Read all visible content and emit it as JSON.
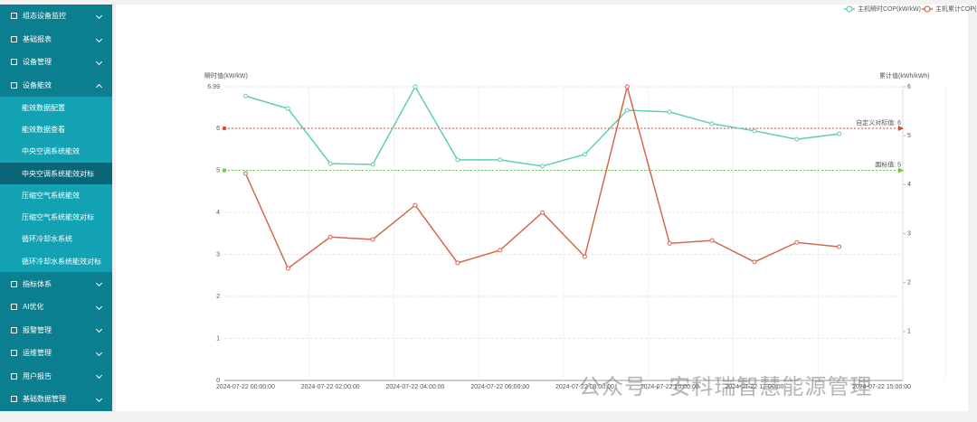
{
  "sidebar": {
    "menu": [
      {
        "label": "组态设备监控"
      },
      {
        "label": "基础报表"
      },
      {
        "label": "设备管理"
      },
      {
        "label": "设备能效",
        "expanded": true,
        "children": [
          {
            "label": "能效数据配置"
          },
          {
            "label": "能效数据查看"
          },
          {
            "label": "中央空调系统能效"
          },
          {
            "label": "中央空调系统能效对标",
            "active": true
          },
          {
            "label": "压缩空气系统能效"
          },
          {
            "label": "压缩空气系统能效对标"
          },
          {
            "label": "循环冷却水系统"
          },
          {
            "label": "循环冷却水系统能效对标"
          }
        ]
      },
      {
        "label": "指标体系"
      },
      {
        "label": "AI优化"
      },
      {
        "label": "报警管理"
      },
      {
        "label": "运维管理"
      },
      {
        "label": "用户报告"
      },
      {
        "label": "基础数据管理"
      }
    ]
  },
  "watermark": "公众号 · 安科瑞智慧能源管理",
  "chart_data": {
    "type": "line",
    "y_label": "瞬时值(kW/kW)",
    "y2_label": "累计值(kWh/kWh)",
    "categories": [
      "2024-07-22 00:00:00",
      null,
      "2024-07-22 02:00:00",
      null,
      "2024-07-22 04:00:00",
      null,
      "2024-07-22 06:00:00",
      null,
      "2024-07-22 08:00:00",
      null,
      "2024-07-22 10:00:00",
      null,
      "2024-07-22 12:00:00",
      null,
      null,
      "2024-07-22 15:00:00"
    ],
    "series": [
      {
        "name": "主机瞬时COP(kW/kW)",
        "color": "#5fd0ad",
        "axis": "y",
        "values": [
          6.77,
          6.47,
          5.16,
          5.14,
          6.99,
          5.25,
          5.25,
          5.1,
          5.38,
          6.43,
          6.39,
          6.11,
          5.94,
          5.74,
          5.87,
          null
        ]
      },
      {
        "name": "主机累计COP(kWh/kWh)",
        "color": "#d4684f",
        "axis": "y2",
        "values": [
          4.23,
          2.29,
          2.93,
          2.88,
          3.58,
          2.4,
          2.66,
          3.43,
          2.53,
          6.0,
          2.8,
          2.86,
          2.42,
          2.82,
          2.73,
          null
        ]
      }
    ],
    "ylim": [
      0,
      6.99
    ],
    "yticks": [
      0,
      1,
      2,
      3,
      4,
      5,
      6,
      6.99
    ],
    "y2lim": [
      0,
      6
    ],
    "y2ticks": [
      1,
      2,
      3,
      4,
      5,
      6
    ],
    "mark_lines": [
      {
        "value": 6,
        "label": "自定义对标值: 6",
        "color": "#e0443a"
      },
      {
        "value": 5,
        "label": "国标值: 5",
        "color": "#6dc94a"
      }
    ],
    "grid": true,
    "legend": "top-right"
  }
}
